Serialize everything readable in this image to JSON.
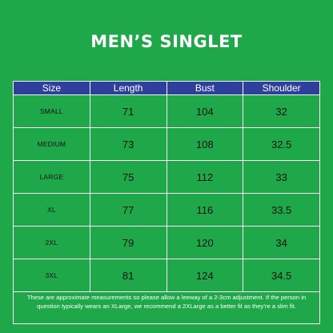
{
  "title": "MEN’S SINGLET",
  "table": {
    "headers": [
      "Size",
      "Length",
      "Bust",
      "Shoulder"
    ],
    "rows": [
      {
        "size": "SMALL",
        "length": "71",
        "bust": "104",
        "shoulder": "32"
      },
      {
        "size": "MEDIUM",
        "length": "73",
        "bust": "108",
        "shoulder": "32.5"
      },
      {
        "size": "LARGE",
        "length": "75",
        "bust": "112",
        "shoulder": "33"
      },
      {
        "size": "XL",
        "length": "77",
        "bust": "116",
        "shoulder": "33.5"
      },
      {
        "size": "2XL",
        "length": "79",
        "bust": "120",
        "shoulder": "34"
      },
      {
        "size": "3XL",
        "length": "81",
        "bust": "124",
        "shoulder": "34.5"
      }
    ]
  },
  "note": "These are approximate measurements so please allow a leeway of a 2-3cm adjustment. If the person in question typically wears an XLarge, we recommend a 2XLarge as a better fit as they’re a slim fit.",
  "colors": {
    "background": "#1fa84a",
    "header_bg": "#2f3f9c",
    "border": "#ffffff"
  }
}
